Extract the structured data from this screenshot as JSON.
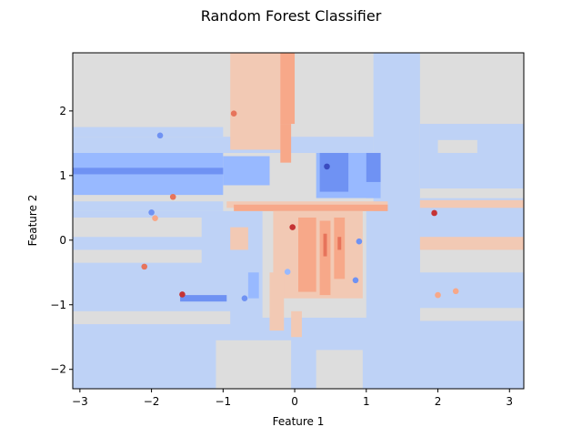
{
  "chart_data": {
    "type": "scatter",
    "title": "Random Forest Classifier",
    "xlabel": "Feature 1",
    "ylabel": "Feature 2",
    "xlim": [
      -3.1,
      3.2
    ],
    "ylim": [
      -2.3,
      2.9
    ],
    "xticks": [
      -3,
      -2,
      -1,
      0,
      1,
      2,
      3
    ],
    "yticks": [
      -2,
      -1,
      0,
      1,
      2
    ],
    "xtick_labels": [
      "−3",
      "−2",
      "−1",
      "0",
      "1",
      "2",
      "3"
    ],
    "ytick_labels": [
      "−2",
      "−1",
      "0",
      "1",
      "2"
    ],
    "grid": false,
    "colormap": "coolwarm",
    "colors": {
      "deep_blue": "#3b4cc0",
      "blue": "#6f92f3",
      "light_blue": "#98b9ff",
      "pale_blue": "#bed2f6",
      "grey": "#dddddd",
      "pale_red": "#f2c9b4",
      "light_red": "#f7a889",
      "red": "#e7745b",
      "deep_red": "#c53334"
    },
    "decision_regions": [
      {
        "x": [
          -3.1,
          3.2
        ],
        "y": [
          -2.3,
          2.9
        ],
        "level": "grey"
      },
      {
        "x": [
          -3.1,
          1.75
        ],
        "y": [
          -2.3,
          0.45
        ],
        "level": "pale_blue"
      },
      {
        "x": [
          -3.1,
          -1.0
        ],
        "y": [
          0.45,
          0.6
        ],
        "level": "pale_blue"
      },
      {
        "x": [
          -3.1,
          3.2
        ],
        "y": [
          -0.95,
          -0.55
        ],
        "level": "pale_blue"
      },
      {
        "x": [
          1.1,
          1.75
        ],
        "y": [
          -2.3,
          2.9
        ],
        "level": "pale_blue"
      },
      {
        "x": [
          1.75,
          3.2
        ],
        "y": [
          0.8,
          1.8
        ],
        "level": "pale_blue"
      },
      {
        "x": [
          1.75,
          3.2
        ],
        "y": [
          -0.15,
          0.65
        ],
        "level": "pale_blue"
      },
      {
        "x": [
          1.75,
          3.2
        ],
        "y": [
          -1.05,
          -0.5
        ],
        "level": "pale_blue"
      },
      {
        "x": [
          -3.1,
          1.1
        ],
        "y": [
          1.35,
          1.6
        ],
        "level": "pale_blue"
      },
      {
        "x": [
          -3.1,
          -1.0
        ],
        "y": [
          1.6,
          1.75
        ],
        "level": "pale_blue"
      },
      {
        "x": [
          -3.1,
          3.2
        ],
        "y": [
          -2.3,
          -1.25
        ],
        "level": "pale_blue"
      },
      {
        "x": [
          -3.1,
          -2.1
        ],
        "y": [
          -1.25,
          -0.95
        ],
        "level": "pale_blue"
      },
      {
        "x": [
          -1.7,
          -1.05
        ],
        "y": [
          -1.25,
          -0.95
        ],
        "level": "pale_blue"
      },
      {
        "x": [
          -3.1,
          -1.3
        ],
        "y": [
          -0.35,
          -0.15
        ],
        "level": "grey"
      },
      {
        "x": [
          -3.1,
          -1.3
        ],
        "y": [
          0.05,
          0.35
        ],
        "level": "grey"
      },
      {
        "x": [
          -3.1,
          -0.9
        ],
        "y": [
          -1.3,
          -1.1
        ],
        "level": "grey"
      },
      {
        "x": [
          -1.1,
          -0.05
        ],
        "y": [
          -2.3,
          -1.55
        ],
        "level": "grey"
      },
      {
        "x": [
          0.3,
          0.95
        ],
        "y": [
          -2.3,
          -1.7
        ],
        "level": "grey"
      },
      {
        "x": [
          2.0,
          2.55
        ],
        "y": [
          1.35,
          1.55
        ],
        "level": "grey"
      },
      {
        "x": [
          -3.1,
          -1.0
        ],
        "y": [
          0.7,
          1.35
        ],
        "level": "light_blue"
      },
      {
        "x": [
          -1.0,
          -0.35
        ],
        "y": [
          0.85,
          1.3
        ],
        "level": "light_blue"
      },
      {
        "x": [
          0.3,
          1.2
        ],
        "y": [
          0.65,
          1.35
        ],
        "level": "light_blue"
      },
      {
        "x": [
          -3.1,
          -1.0
        ],
        "y": [
          1.02,
          1.12
        ],
        "level": "blue"
      },
      {
        "x": [
          0.35,
          0.75
        ],
        "y": [
          0.75,
          1.35
        ],
        "level": "blue"
      },
      {
        "x": [
          1.0,
          1.2
        ],
        "y": [
          0.9,
          1.35
        ],
        "level": "blue"
      },
      {
        "x": [
          -1.6,
          -0.95
        ],
        "y": [
          -0.95,
          -0.85
        ],
        "level": "blue"
      },
      {
        "x": [
          -0.65,
          -0.5
        ],
        "y": [
          -0.9,
          -0.5
        ],
        "level": "light_blue"
      },
      {
        "x": [
          -0.45,
          1.0
        ],
        "y": [
          -1.2,
          0.65
        ],
        "level": "grey"
      },
      {
        "x": [
          -0.9,
          -0.15
        ],
        "y": [
          1.4,
          2.9
        ],
        "level": "pale_red"
      },
      {
        "x": [
          -0.2,
          0.0
        ],
        "y": [
          1.8,
          2.9
        ],
        "level": "light_red"
      },
      {
        "x": [
          -0.2,
          -0.05
        ],
        "y": [
          1.2,
          1.8
        ],
        "level": "light_red"
      },
      {
        "x": [
          -0.95,
          1.3
        ],
        "y": [
          0.5,
          0.6
        ],
        "level": "pale_red"
      },
      {
        "x": [
          -0.85,
          1.3
        ],
        "y": [
          0.45,
          0.55
        ],
        "level": "light_red"
      },
      {
        "x": [
          1.75,
          3.2
        ],
        "y": [
          0.5,
          0.62
        ],
        "level": "pale_red"
      },
      {
        "x": [
          1.75,
          3.2
        ],
        "y": [
          -0.15,
          0.05
        ],
        "level": "pale_red"
      },
      {
        "x": [
          -0.9,
          -0.65
        ],
        "y": [
          -0.15,
          0.2
        ],
        "level": "pale_red"
      },
      {
        "x": [
          -0.3,
          0.95
        ],
        "y": [
          -0.9,
          0.45
        ],
        "level": "pale_red"
      },
      {
        "x": [
          0.05,
          0.3
        ],
        "y": [
          -0.8,
          0.35
        ],
        "level": "light_red"
      },
      {
        "x": [
          0.35,
          0.5
        ],
        "y": [
          -0.85,
          0.3
        ],
        "level": "light_red"
      },
      {
        "x": [
          0.55,
          0.7
        ],
        "y": [
          -0.6,
          0.35
        ],
        "level": "light_red"
      },
      {
        "x": [
          0.4,
          0.45
        ],
        "y": [
          -0.25,
          0.1
        ],
        "level": "red"
      },
      {
        "x": [
          0.6,
          0.65
        ],
        "y": [
          -0.15,
          0.05
        ],
        "level": "red"
      },
      {
        "x": [
          -0.35,
          -0.15
        ],
        "y": [
          -1.4,
          -0.5
        ],
        "level": "pale_red"
      },
      {
        "x": [
          -0.05,
          0.1
        ],
        "y": [
          -1.5,
          -1.1
        ],
        "level": "pale_red"
      }
    ],
    "points": [
      {
        "x": -1.88,
        "y": 1.62,
        "color": "blue"
      },
      {
        "x": -0.85,
        "y": 1.96,
        "color": "red"
      },
      {
        "x": 0.45,
        "y": 1.14,
        "color": "deep_blue"
      },
      {
        "x": -1.7,
        "y": 0.67,
        "color": "red"
      },
      {
        "x": -2.0,
        "y": 0.43,
        "color": "blue"
      },
      {
        "x": -1.95,
        "y": 0.34,
        "color": "light_red"
      },
      {
        "x": -0.03,
        "y": 0.2,
        "color": "deep_red"
      },
      {
        "x": 1.95,
        "y": 0.42,
        "color": "deep_red"
      },
      {
        "x": 0.9,
        "y": -0.02,
        "color": "blue"
      },
      {
        "x": -2.1,
        "y": -0.41,
        "color": "red"
      },
      {
        "x": -0.1,
        "y": -0.49,
        "color": "light_blue"
      },
      {
        "x": 0.85,
        "y": -0.62,
        "color": "blue"
      },
      {
        "x": 2.25,
        "y": -0.79,
        "color": "light_red"
      },
      {
        "x": 2.0,
        "y": -0.85,
        "color": "light_red"
      },
      {
        "x": -1.57,
        "y": -0.84,
        "color": "deep_red"
      },
      {
        "x": -0.7,
        "y": -0.9,
        "color": "blue"
      }
    ]
  }
}
